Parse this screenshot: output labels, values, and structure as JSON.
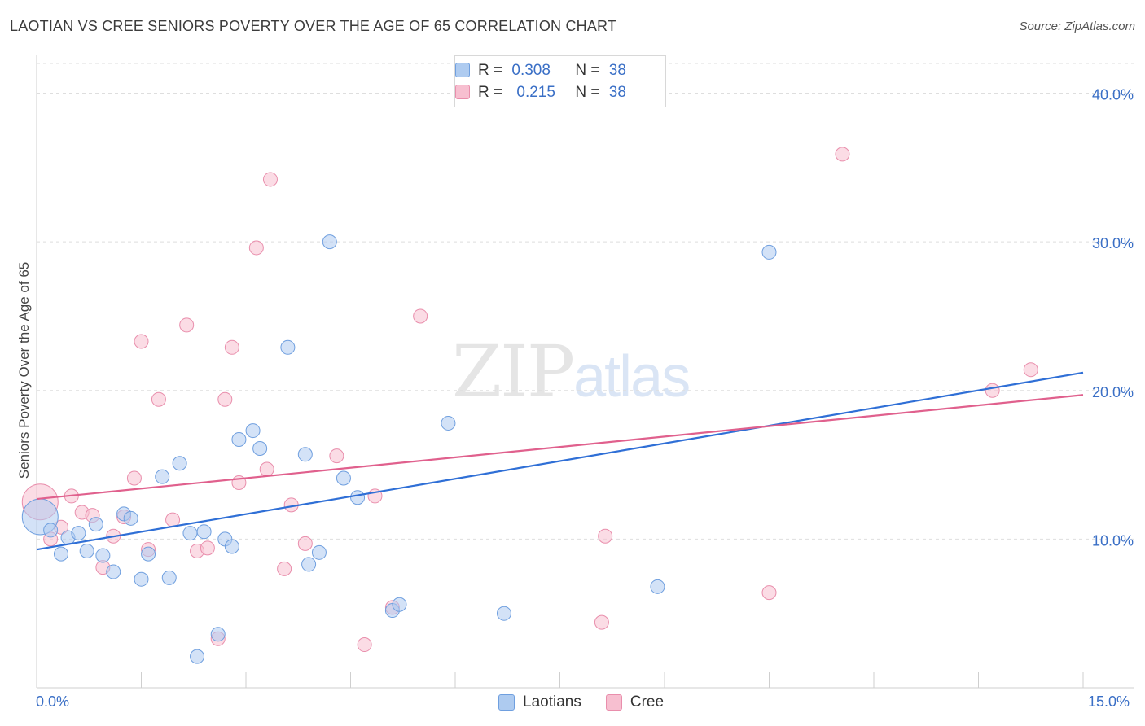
{
  "title": "LAOTIAN VS CREE SENIORS POVERTY OVER THE AGE OF 65 CORRELATION CHART",
  "source": "Source: ZipAtlas.com",
  "watermark": {
    "zip": "ZIP",
    "atlas": "atlas"
  },
  "legend_top": {
    "rows": [
      {
        "r_label": "R =",
        "r_value": "0.308",
        "n_label": "N =",
        "n_value": "38"
      },
      {
        "r_label": "R =",
        "r_value": "0.215",
        "n_label": "N =",
        "n_value": "38"
      }
    ]
  },
  "bottom_legend": {
    "laotians": "Laotians",
    "cree": "Cree"
  },
  "x_tick_labels": {
    "min": "0.0%",
    "max": "15.0%"
  },
  "colors": {
    "laotians_fill": "#aecbf0",
    "laotians_stroke": "#6f9fdf",
    "laotians_line": "#2f6fd6",
    "cree_fill": "#f7bfd0",
    "cree_stroke": "#e98eac",
    "cree_line": "#e0608d",
    "tick_label": "#3a6fc6"
  },
  "chart_data": {
    "type": "scatter",
    "title": "LAOTIAN VS CREE SENIORS POVERTY OVER THE AGE OF 65 CORRELATION CHART",
    "xlabel": "",
    "ylabel": "Seniors Poverty Over the Age of 65",
    "xlim": [
      0,
      15
    ],
    "ylim": [
      0,
      42
    ],
    "y_ticks": [
      {
        "value": 10,
        "label": "10.0%"
      },
      {
        "value": 20,
        "label": "20.0%"
      },
      {
        "value": 30,
        "label": "30.0%"
      },
      {
        "value": 40,
        "label": "40.0%"
      }
    ],
    "grid": true,
    "legend_position": "top-center",
    "series": [
      {
        "name": "Laotians",
        "r": 0.308,
        "n": 38,
        "trend": {
          "x": [
            0,
            15
          ],
          "y": [
            9.3,
            21.2
          ]
        },
        "points": [
          [
            0.05,
            11.5,
            "large"
          ],
          [
            0.2,
            10.6
          ],
          [
            0.35,
            9.0
          ],
          [
            0.45,
            10.1
          ],
          [
            0.6,
            10.4
          ],
          [
            0.72,
            9.2
          ],
          [
            0.85,
            11.0
          ],
          [
            0.95,
            8.9
          ],
          [
            1.1,
            7.8
          ],
          [
            1.25,
            11.7
          ],
          [
            1.35,
            11.4
          ],
          [
            1.5,
            7.3
          ],
          [
            1.6,
            9.0
          ],
          [
            1.8,
            14.2
          ],
          [
            1.9,
            7.4
          ],
          [
            2.05,
            15.1
          ],
          [
            2.2,
            10.4
          ],
          [
            2.3,
            2.1
          ],
          [
            2.4,
            10.5
          ],
          [
            2.6,
            3.6
          ],
          [
            2.7,
            10.0
          ],
          [
            2.8,
            9.5
          ],
          [
            2.9,
            16.7
          ],
          [
            3.1,
            17.3
          ],
          [
            3.2,
            16.1
          ],
          [
            3.6,
            22.9
          ],
          [
            3.85,
            15.7
          ],
          [
            3.9,
            8.3
          ],
          [
            4.05,
            9.1
          ],
          [
            4.2,
            30.0
          ],
          [
            4.4,
            14.1
          ],
          [
            4.6,
            12.8
          ],
          [
            5.1,
            5.2
          ],
          [
            5.2,
            5.6
          ],
          [
            5.9,
            17.8
          ],
          [
            6.7,
            5.0
          ],
          [
            8.9,
            6.8
          ],
          [
            10.5,
            29.3
          ]
        ]
      },
      {
        "name": "Cree",
        "r": 0.215,
        "n": 38,
        "trend": {
          "x": [
            0,
            15
          ],
          "y": [
            12.7,
            19.7
          ]
        },
        "points": [
          [
            0.05,
            12.5,
            "large"
          ],
          [
            0.2,
            10.0
          ],
          [
            0.35,
            10.8
          ],
          [
            0.5,
            12.9
          ],
          [
            0.65,
            11.8
          ],
          [
            0.8,
            11.6
          ],
          [
            0.95,
            8.1
          ],
          [
            1.1,
            10.2
          ],
          [
            1.25,
            11.5
          ],
          [
            1.4,
            14.1
          ],
          [
            1.5,
            23.3
          ],
          [
            1.6,
            9.3
          ],
          [
            1.75,
            19.4
          ],
          [
            1.95,
            11.3
          ],
          [
            2.15,
            24.4
          ],
          [
            2.3,
            9.2
          ],
          [
            2.45,
            9.4
          ],
          [
            2.6,
            3.3
          ],
          [
            2.7,
            19.4
          ],
          [
            2.8,
            22.9
          ],
          [
            2.9,
            13.8
          ],
          [
            3.15,
            29.6
          ],
          [
            3.3,
            14.7
          ],
          [
            3.35,
            34.2
          ],
          [
            3.55,
            8.0
          ],
          [
            3.65,
            12.3
          ],
          [
            3.85,
            9.7
          ],
          [
            4.3,
            15.6
          ],
          [
            4.7,
            2.9
          ],
          [
            4.85,
            12.9
          ],
          [
            5.1,
            5.4
          ],
          [
            5.5,
            25.0
          ],
          [
            8.1,
            4.4
          ],
          [
            8.15,
            10.2
          ],
          [
            10.5,
            6.4
          ],
          [
            11.55,
            35.9
          ],
          [
            13.7,
            20.0
          ],
          [
            14.25,
            21.4
          ]
        ]
      }
    ]
  }
}
